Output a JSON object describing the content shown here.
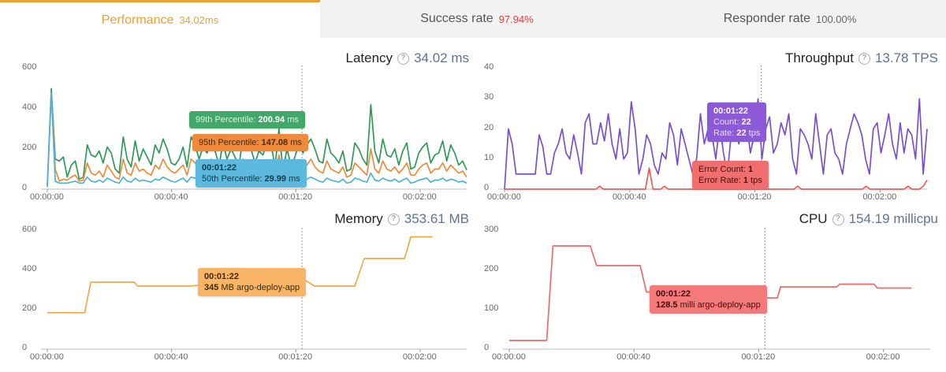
{
  "tabs": [
    {
      "label": "Performance",
      "value": "34.02ms",
      "value_color": "#f0a030"
    },
    {
      "label": "Success rate",
      "value": "97.94%",
      "value_color": "#e0403f"
    },
    {
      "label": "Responder rate",
      "value": "100.00%",
      "value_color": "#666666"
    }
  ],
  "latency": {
    "title": "Latency",
    "value": "34.02 ms",
    "y_ticks": [
      "600",
      "400",
      "200",
      "0"
    ],
    "x_ticks": [
      "00:00:00",
      "00:00:40",
      "00:01:20",
      "00:02:00"
    ],
    "tooltips": {
      "p99_label": "99th Percentile:",
      "p99_value": "200.94",
      "p99_unit": "ms",
      "p95_label": "95th Percentile:",
      "p95_value": "147.08",
      "p95_unit": "ms",
      "time": "00:01:22",
      "p50_label": "50th Percentile:",
      "p50_value": "29.99",
      "p50_unit": "ms"
    }
  },
  "throughput": {
    "title": "Throughput",
    "value": "13.78 TPS",
    "y_ticks": [
      "40",
      "30",
      "20",
      "10",
      "0"
    ],
    "x_ticks": [
      "00:00:00",
      "00:00:40",
      "00:01:20",
      "00:02:00"
    ],
    "tooltips": {
      "time": "00:01:22",
      "count_label": "Count:",
      "count_value": "22",
      "rate_label": "Rate:",
      "rate_value": "22",
      "rate_unit": "tps",
      "err_count_label": "Error Count:",
      "err_count_value": "1",
      "err_rate_label": "Error Rate:",
      "err_rate_value": "1",
      "err_rate_unit": "tps"
    }
  },
  "memory": {
    "title": "Memory",
    "value": "353.61 MB",
    "y_ticks": [
      "600",
      "400",
      "200",
      "0"
    ],
    "x_ticks": [
      "00:00:00",
      "00:00:40",
      "00:01:20",
      "00:02:00"
    ],
    "tooltip": {
      "time": "00:01:22",
      "value": "345",
      "text": "MB argo-deploy-app"
    }
  },
  "cpu": {
    "title": "CPU",
    "value": "154.19 millicpu",
    "y_ticks": [
      "300",
      "200",
      "100",
      "0"
    ],
    "x_ticks": [
      "00:00:00",
      "00:00:40",
      "00:01:20",
      "00:02:00"
    ],
    "tooltip": {
      "time": "00:01:22",
      "value": "128.5",
      "text": "milli argo-deploy-app"
    }
  },
  "chart_data": [
    {
      "type": "line",
      "title": "Latency",
      "ylim": [
        0,
        600
      ],
      "x_range_seconds": [
        0,
        135
      ],
      "series": [
        {
          "name": "99th Percentile",
          "color": "#2e9a55",
          "values": [
            20,
            500,
            150,
            140,
            160,
            60,
            120,
            140,
            50,
            60,
            220,
            170,
            160,
            190,
            130,
            210,
            180,
            100,
            80,
            260,
            150,
            110,
            240,
            140,
            200,
            160,
            120,
            220,
            180,
            250,
            200,
            130,
            120,
            150,
            210,
            110,
            260,
            220,
            150,
            210,
            180,
            250,
            190,
            120,
            230,
            150,
            200,
            160,
            120,
            260,
            200,
            200,
            130,
            190,
            170,
            240,
            230,
            110,
            300,
            90,
            200,
            120,
            160,
            230,
            180,
            220,
            250,
            200,
            140,
            130,
            250,
            180,
            160,
            130,
            190,
            90,
            100,
            230,
            200,
            150,
            120,
            420,
            190,
            130,
            250,
            170,
            160,
            200,
            120,
            190,
            230,
            100,
            110,
            180,
            210,
            230,
            130,
            170,
            180,
            240,
            140,
            220,
            180,
            120,
            140,
            95
          ]
        },
        {
          "name": "95th Percentile",
          "color": "#ef8a3a",
          "values": [
            15,
            480,
            100,
            40,
            50,
            45,
            60,
            70,
            40,
            45,
            130,
            80,
            70,
            90,
            60,
            120,
            90,
            60,
            50,
            150,
            80,
            70,
            130,
            90,
            100,
            80,
            70,
            120,
            100,
            150,
            110,
            90,
            80,
            100,
            120,
            70,
            150,
            130,
            100,
            120,
            110,
            150,
            100,
            80,
            130,
            90,
            110,
            100,
            80,
            150,
            110,
            147,
            80,
            100,
            90,
            130,
            120,
            70,
            170,
            60,
            110,
            80,
            100,
            120,
            100,
            120,
            150,
            110,
            90,
            80,
            140,
            100,
            90,
            80,
            110,
            60,
            70,
            130,
            110,
            90,
            70,
            200,
            100,
            80,
            140,
            100,
            90,
            110,
            80,
            100,
            130,
            70,
            70,
            100,
            120,
            130,
            80,
            100,
            100,
            130,
            90,
            120,
            100,
            80,
            90,
            60
          ]
        },
        {
          "name": "50th Percentile",
          "color": "#4fb2d6",
          "values": [
            10,
            480,
            40,
            30,
            30,
            30,
            35,
            40,
            30,
            30,
            60,
            40,
            35,
            45,
            35,
            55,
            45,
            35,
            30,
            60,
            40,
            35,
            55,
            40,
            45,
            40,
            35,
            50,
            45,
            60,
            50,
            40,
            35,
            45,
            55,
            35,
            60,
            55,
            45,
            50,
            45,
            60,
            45,
            35,
            55,
            40,
            50,
            45,
            35,
            60,
            50,
            30,
            40,
            45,
            40,
            55,
            50,
            35,
            70,
            30,
            50,
            40,
            45,
            55,
            45,
            50,
            60,
            50,
            40,
            35,
            55,
            45,
            40,
            35,
            50,
            30,
            35,
            55,
            50,
            40,
            35,
            80,
            45,
            40,
            55,
            45,
            40,
            50,
            35,
            45,
            55,
            30,
            35,
            45,
            50,
            55,
            35,
            45,
            45,
            55,
            40,
            50,
            45,
            35,
            40,
            30
          ]
        }
      ]
    },
    {
      "type": "line",
      "title": "Throughput",
      "ylim": [
        0,
        40
      ],
      "x_range_seconds": [
        0,
        135
      ],
      "series": [
        {
          "name": "Count",
          "color": "#7a4fcf",
          "values": [
            0,
            20,
            15,
            5,
            5,
            5,
            5,
            5,
            5,
            18,
            14,
            5,
            5,
            12,
            15,
            20,
            12,
            10,
            18,
            12,
            5,
            22,
            25,
            15,
            15,
            22,
            16,
            25,
            15,
            10,
            20,
            10,
            12,
            29,
            20,
            5,
            10,
            18,
            15,
            8,
            5,
            12,
            10,
            22,
            18,
            8,
            20,
            15,
            10,
            5,
            10,
            25,
            15,
            20,
            18,
            10,
            22,
            12,
            5,
            18,
            22,
            15,
            25,
            22,
            12,
            18,
            30,
            10,
            20,
            24,
            12,
            15,
            22,
            18,
            25,
            10,
            5,
            20,
            18,
            15,
            10,
            25,
            15,
            5,
            18,
            20,
            12,
            10,
            5,
            15,
            20,
            25,
            22,
            18,
            10,
            5,
            20,
            22,
            12,
            18,
            25,
            15,
            10,
            22,
            12,
            20,
            18,
            10,
            30,
            5,
            20
          ]
        },
        {
          "name": "Error Count",
          "color": "#ef5a5a",
          "values": [
            0,
            0,
            0,
            0,
            0,
            0,
            0,
            0,
            0,
            0,
            0,
            0,
            0,
            0,
            0,
            0,
            0,
            0,
            0,
            0,
            0,
            0,
            0,
            0,
            0,
            1,
            0,
            0,
            0,
            0,
            0,
            0,
            0,
            0,
            0,
            0,
            0,
            0,
            7,
            0,
            0,
            0,
            1,
            0,
            0,
            0,
            0,
            0,
            0,
            0,
            0,
            0,
            0,
            0,
            0,
            0,
            0,
            0,
            0,
            0,
            0,
            0,
            0,
            0,
            0,
            0,
            0,
            0,
            0,
            0,
            0,
            0,
            0,
            0,
            0,
            0,
            0,
            1,
            0,
            0,
            0,
            0,
            0,
            0,
            0,
            0,
            0,
            0,
            0,
            0,
            0,
            0,
            0,
            0,
            0,
            1,
            0,
            0,
            0,
            0,
            0,
            0,
            0,
            0,
            0,
            0,
            1,
            0,
            0,
            0,
            1,
            3
          ]
        }
      ]
    },
    {
      "type": "line",
      "title": "Memory",
      "ylim": [
        0,
        600
      ],
      "series": [
        {
          "name": "argo-deploy-app",
          "color": "#f5a84a",
          "points": [
            [
              0,
              185
            ],
            [
              12,
              185
            ],
            [
              14,
              340
            ],
            [
              28,
              340
            ],
            [
              29,
              320
            ],
            [
              46,
              320
            ],
            [
              49,
              325
            ],
            [
              79,
              345
            ],
            [
              83,
              350
            ],
            [
              86,
              320
            ],
            [
              99,
              320
            ],
            [
              102,
              460
            ],
            [
              115,
              460
            ],
            [
              117,
              570
            ],
            [
              124,
              570
            ]
          ]
        }
      ]
    },
    {
      "type": "line",
      "title": "CPU",
      "ylim": [
        0,
        300
      ],
      "series": [
        {
          "name": "argo-deploy-app",
          "color": "#f06a6a",
          "points": [
            [
              0,
              22
            ],
            [
              12,
              22
            ],
            [
              14,
              262
            ],
            [
              26,
              262
            ],
            [
              28,
              212
            ],
            [
              42,
              212
            ],
            [
              44,
              145
            ],
            [
              62,
              145
            ],
            [
              63,
              128
            ],
            [
              80,
              128
            ],
            [
              82,
              130
            ],
            [
              86,
              130
            ],
            [
              87,
              158
            ],
            [
              105,
              158
            ],
            [
              106,
              165
            ],
            [
              117,
              165
            ],
            [
              118,
              155
            ],
            [
              129,
              155
            ]
          ]
        }
      ]
    }
  ]
}
